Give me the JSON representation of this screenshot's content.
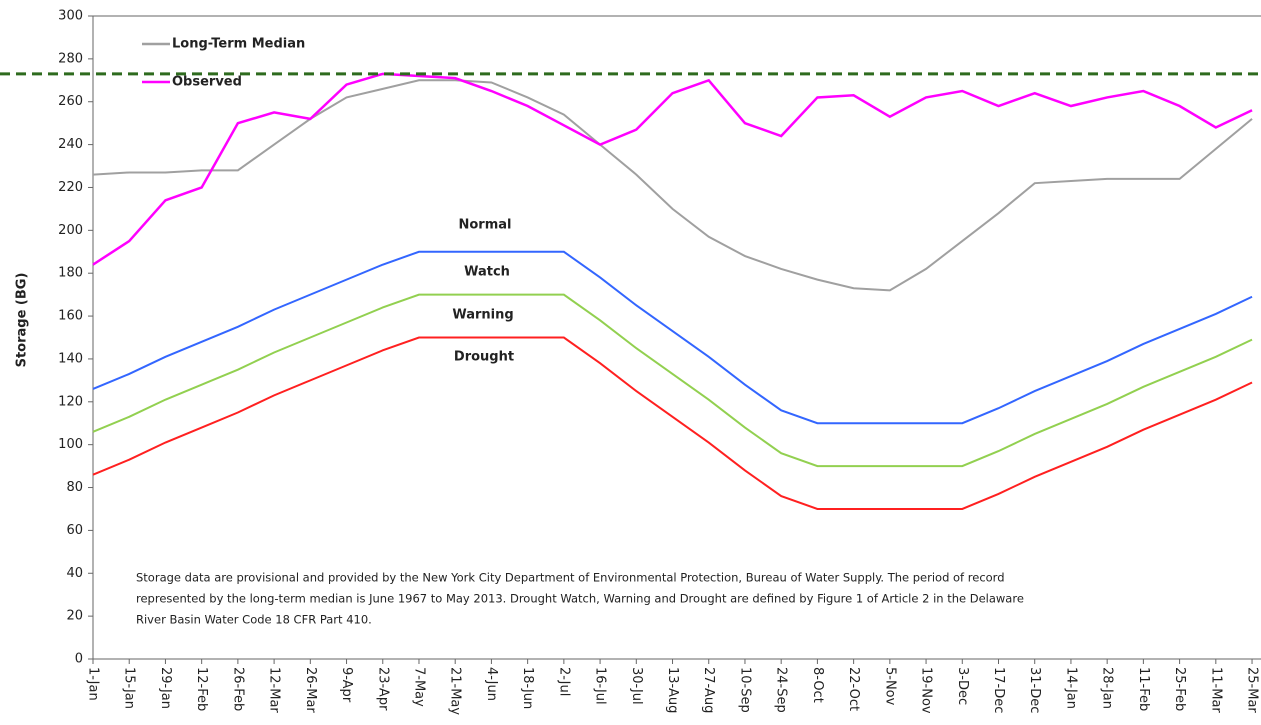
{
  "chart_data": {
    "type": "line",
    "y_label": "Storage (BG)",
    "categories": [
      "1-Jan",
      "15-Jan",
      "29-Jan",
      "12-Feb",
      "26-Feb",
      "12-Mar",
      "26-Mar",
      "9-Apr",
      "23-Apr",
      "7-May",
      "21-May",
      "4-Jun",
      "18-Jun",
      "2-Jul",
      "16-Jul",
      "30-Jul",
      "13-Aug",
      "27-Aug",
      "10-Sep",
      "24-Sep",
      "8-Oct",
      "22-Oct",
      "5-Nov",
      "19-Nov",
      "3-Dec",
      "17-Dec",
      "31-Dec",
      "14-Jan",
      "28-Jan",
      "11-Feb",
      "25-Feb",
      "11-Mar",
      "25-Mar"
    ],
    "ylim": [
      0,
      300
    ],
    "yticks": [
      0,
      20,
      40,
      60,
      80,
      100,
      120,
      140,
      160,
      180,
      200,
      220,
      240,
      260,
      280,
      300
    ],
    "grid": false,
    "legend": "top-left",
    "series": [
      {
        "name": "Long-Term Median",
        "color": "#a0a0a0",
        "values": [
          226,
          227,
          227,
          228,
          228,
          240,
          252,
          262,
          266,
          270,
          270,
          269,
          262,
          254,
          240,
          226,
          210,
          197,
          188,
          182,
          177,
          173,
          172,
          182,
          195,
          208,
          222,
          223,
          224,
          224,
          224,
          238,
          252
        ]
      },
      {
        "name": "Observed",
        "color": "#ff00ff",
        "values": [
          184,
          195,
          214,
          220,
          250,
          255,
          252,
          268,
          273,
          272,
          271,
          265,
          258,
          249,
          240,
          247,
          264,
          270,
          250,
          244,
          262,
          263,
          253,
          262,
          265,
          258,
          264,
          258,
          262,
          265,
          258,
          248,
          256
        ]
      }
    ],
    "thresholds": [
      {
        "name": "Normal",
        "color": "#3366ff",
        "values": [
          126,
          133,
          141,
          148,
          155,
          163,
          170,
          177,
          184,
          190,
          190,
          190,
          190,
          190,
          178,
          165,
          153,
          141,
          128,
          116,
          110,
          110,
          110,
          110,
          110,
          117,
          125,
          132,
          139,
          147,
          154,
          161,
          169
        ]
      },
      {
        "name": "Watch",
        "color": "#92d050",
        "values": [
          106,
          113,
          121,
          128,
          135,
          143,
          150,
          157,
          164,
          170,
          170,
          170,
          170,
          170,
          158,
          145,
          133,
          121,
          108,
          96,
          90,
          90,
          90,
          90,
          90,
          97,
          105,
          112,
          119,
          127,
          134,
          141,
          149
        ]
      },
      {
        "name": "Warning",
        "color": "#ff2020",
        "values": [
          86,
          93,
          101,
          108,
          115,
          123,
          130,
          137,
          144,
          150,
          150,
          150,
          150,
          150,
          138,
          125,
          113,
          101,
          88,
          76,
          70,
          70,
          70,
          70,
          70,
          77,
          85,
          92,
          99,
          107,
          114,
          121,
          129
        ]
      },
      {
        "name": "Drought"
      }
    ],
    "reference_line": {
      "value": 273,
      "color": "#2e6b1e"
    },
    "note": [
      "Storage data are provisional and provided by the New York City Department of Environmental Protection, Bureau of Water Supply. The period of record",
      "represented by the long-term median is June 1967 to May 2013. Drought Watch, Warning and Drought are defined by Figure 1 of Article 2 in the Delaware",
      "River Basin Water Code 18 CFR Part 410."
    ]
  }
}
